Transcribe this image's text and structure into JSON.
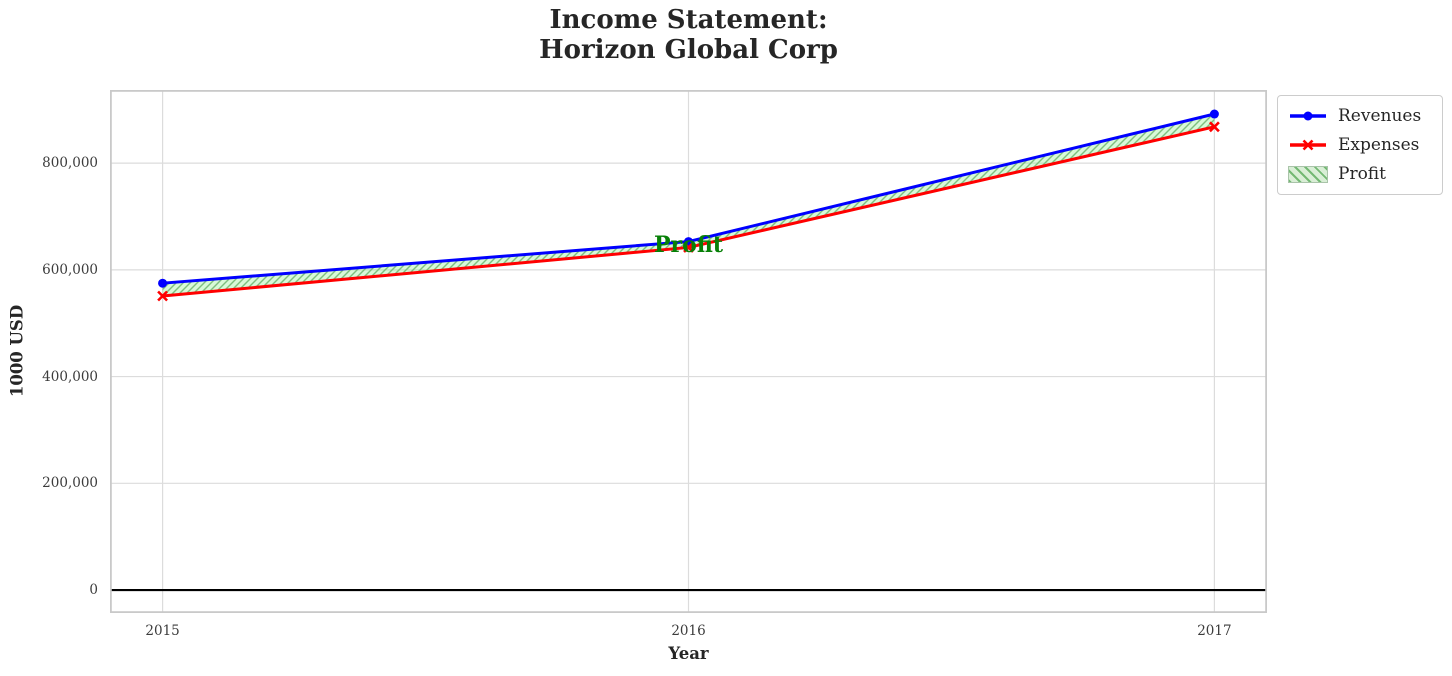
{
  "chart_data": {
    "type": "line",
    "title_lines": [
      "Income Statement:",
      "Horizon Global Corp"
    ],
    "xlabel": "Year",
    "ylabel": "1000 USD",
    "x": [
      2015,
      2016,
      2017
    ],
    "xtick_labels": [
      "2015",
      "2016",
      "2017"
    ],
    "yticks": [
      0,
      200000,
      400000,
      600000,
      800000
    ],
    "ytick_labels": [
      "0",
      "200,000",
      "400,000",
      "600,000",
      "800,000"
    ],
    "xlim": [
      2014.9,
      2017.1
    ],
    "ylim": [
      -43000,
      937000
    ],
    "grid": true,
    "grid_color": "#dcdcdc",
    "spine_color": "#c9c9c9",
    "zero_line_color": "#000000",
    "series": [
      {
        "name": "Revenues",
        "color": "#0000ff",
        "marker": "circle",
        "values": [
          575000,
          653000,
          892000
        ]
      },
      {
        "name": "Expenses",
        "color": "#ff0000",
        "marker": "x",
        "values": [
          551000,
          642000,
          868000
        ]
      }
    ],
    "fill": {
      "label": "Profit",
      "between": [
        "Expenses",
        "Revenues"
      ],
      "facecolor": "#90ee90",
      "hatch": "///",
      "hatch_color": "#74b974",
      "annotation": {
        "text": "Profit",
        "x": 2016,
        "y": 646000,
        "color": "#078007"
      }
    },
    "legend": {
      "position": "upper-right-outside",
      "entries": [
        "Revenues",
        "Expenses",
        "Profit"
      ]
    }
  }
}
